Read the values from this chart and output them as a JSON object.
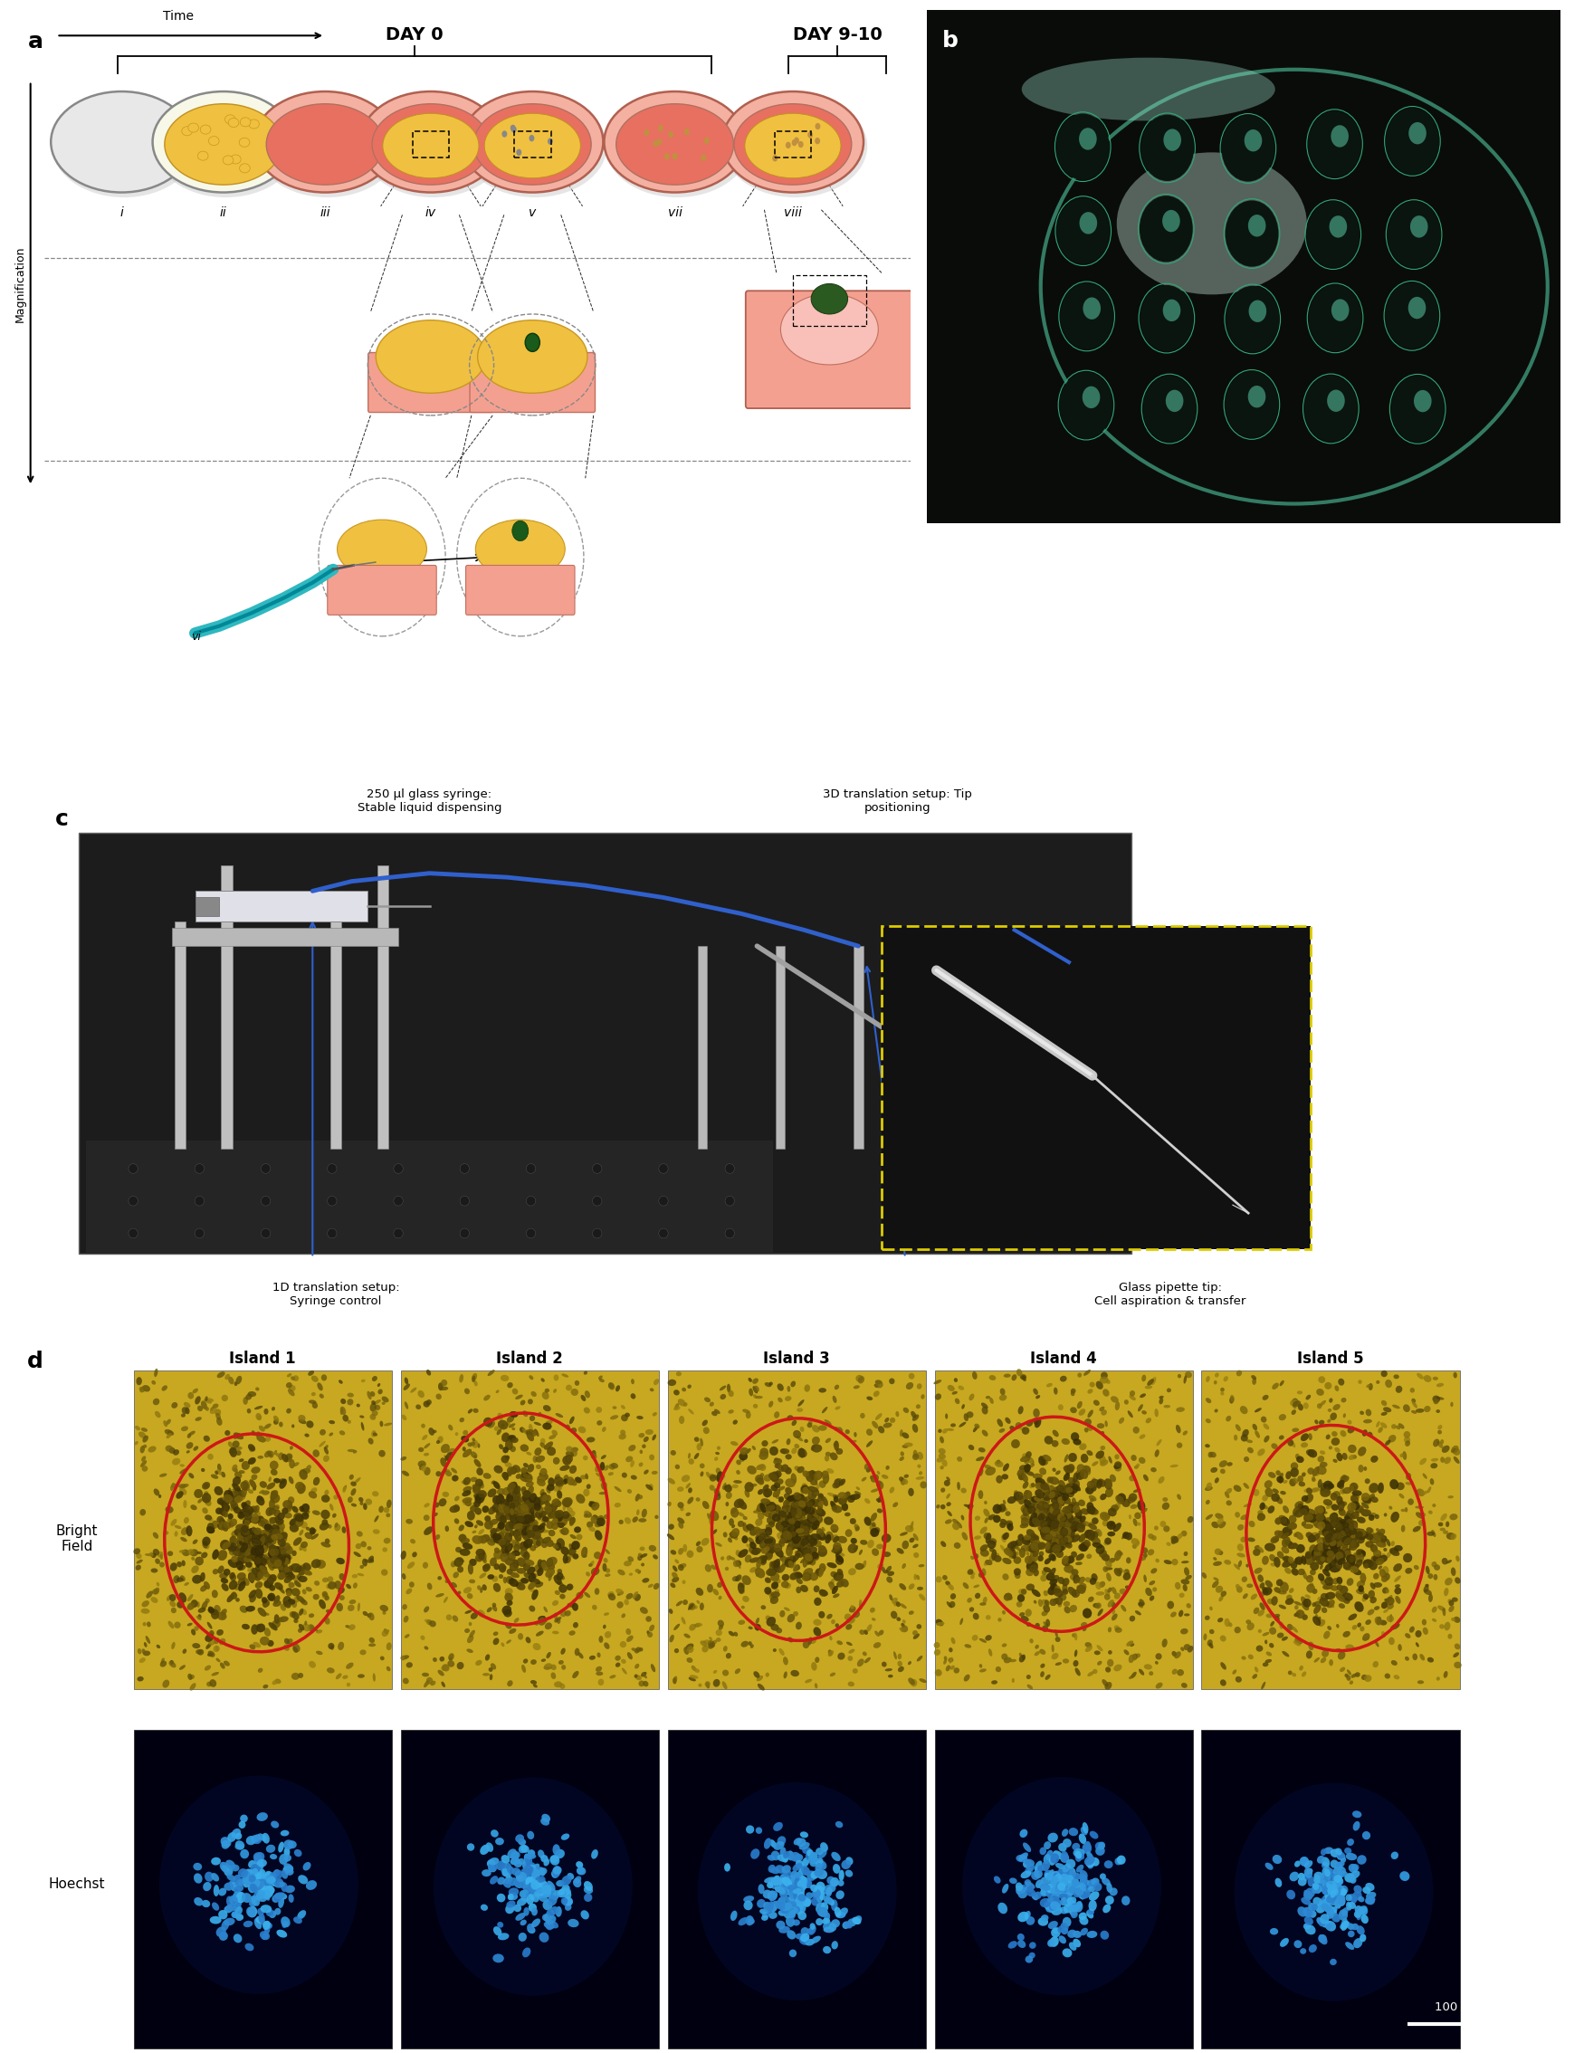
{
  "panel_a_label": "a",
  "panel_b_label": "b",
  "panel_c_label": "c",
  "panel_d_label": "d",
  "time_label": "Time",
  "magnification_label": "Magnification",
  "day0_label": "DAY 0",
  "day9_10_label": "DAY 9-10",
  "island_labels": [
    "Island 1",
    "Island 2",
    "Island 3",
    "Island 4",
    "Island 5"
  ],
  "scale_bar_label": "100 μm",
  "c_text1": "250 μl glass syringe:\nStable liquid dispensing",
  "c_text2": "3D translation setup: Tip\npositioning",
  "c_text3": "1D translation setup:\nSyringe control",
  "c_text4": "Glass pipette tip:\nCell aspiration & transfer",
  "bg_color": "#ffffff",
  "coral_color": "#e87060",
  "salmon_color": "#f4a090",
  "light_salmon": "#f8c0b8",
  "yellow_color": "#f0c040",
  "dark_yellow": "#c89820",
  "teal_color": "#30b8c0",
  "dark_teal": "#008898",
  "dark_green": "#1a5a1a",
  "gray_color": "#d8d8d8",
  "red_outline": "#cc1818",
  "bf_background": "#c8a020",
  "hoechst_bg": "#000010"
}
